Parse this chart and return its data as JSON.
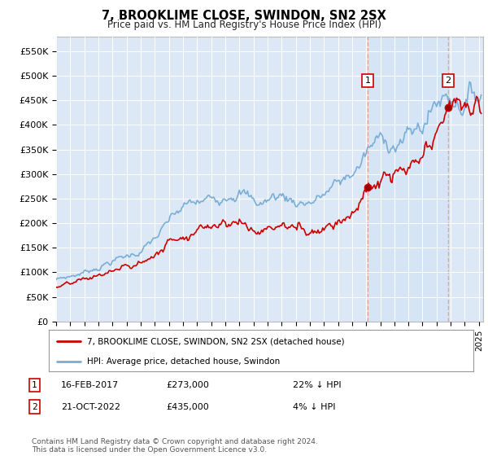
{
  "title": "7, BROOKLIME CLOSE, SWINDON, SN2 2SX",
  "subtitle": "Price paid vs. HM Land Registry's House Price Index (HPI)",
  "ylabel_ticks": [
    "£0",
    "£50K",
    "£100K",
    "£150K",
    "£200K",
    "£250K",
    "£300K",
    "£350K",
    "£400K",
    "£450K",
    "£500K",
    "£550K"
  ],
  "ytick_values": [
    0,
    50000,
    100000,
    150000,
    200000,
    250000,
    300000,
    350000,
    400000,
    450000,
    500000,
    550000
  ],
  "ylim": [
    0,
    580000
  ],
  "xlim_start": 1995.0,
  "xlim_end": 2025.3,
  "bg_color": "#dce8f5",
  "highlight_color": "#d0e4f7",
  "hpi_color": "#7aaed6",
  "price_color": "#cc0000",
  "dashed_color": "#e8a0a0",
  "sale1_x": 2017.12,
  "sale1_y": 273000,
  "sale2_x": 2022.8,
  "sale2_y": 435000,
  "legend_price_label": "7, BROOKLIME CLOSE, SWINDON, SN2 2SX (detached house)",
  "legend_hpi_label": "HPI: Average price, detached house, Swindon",
  "note1_num": "1",
  "note1_date": "16-FEB-2017",
  "note1_price": "£273,000",
  "note1_hpi": "22% ↓ HPI",
  "note2_num": "2",
  "note2_date": "21-OCT-2022",
  "note2_price": "£435,000",
  "note2_hpi": "4% ↓ HPI",
  "footer": "Contains HM Land Registry data © Crown copyright and database right 2024.\nThis data is licensed under the Open Government Licence v3.0."
}
